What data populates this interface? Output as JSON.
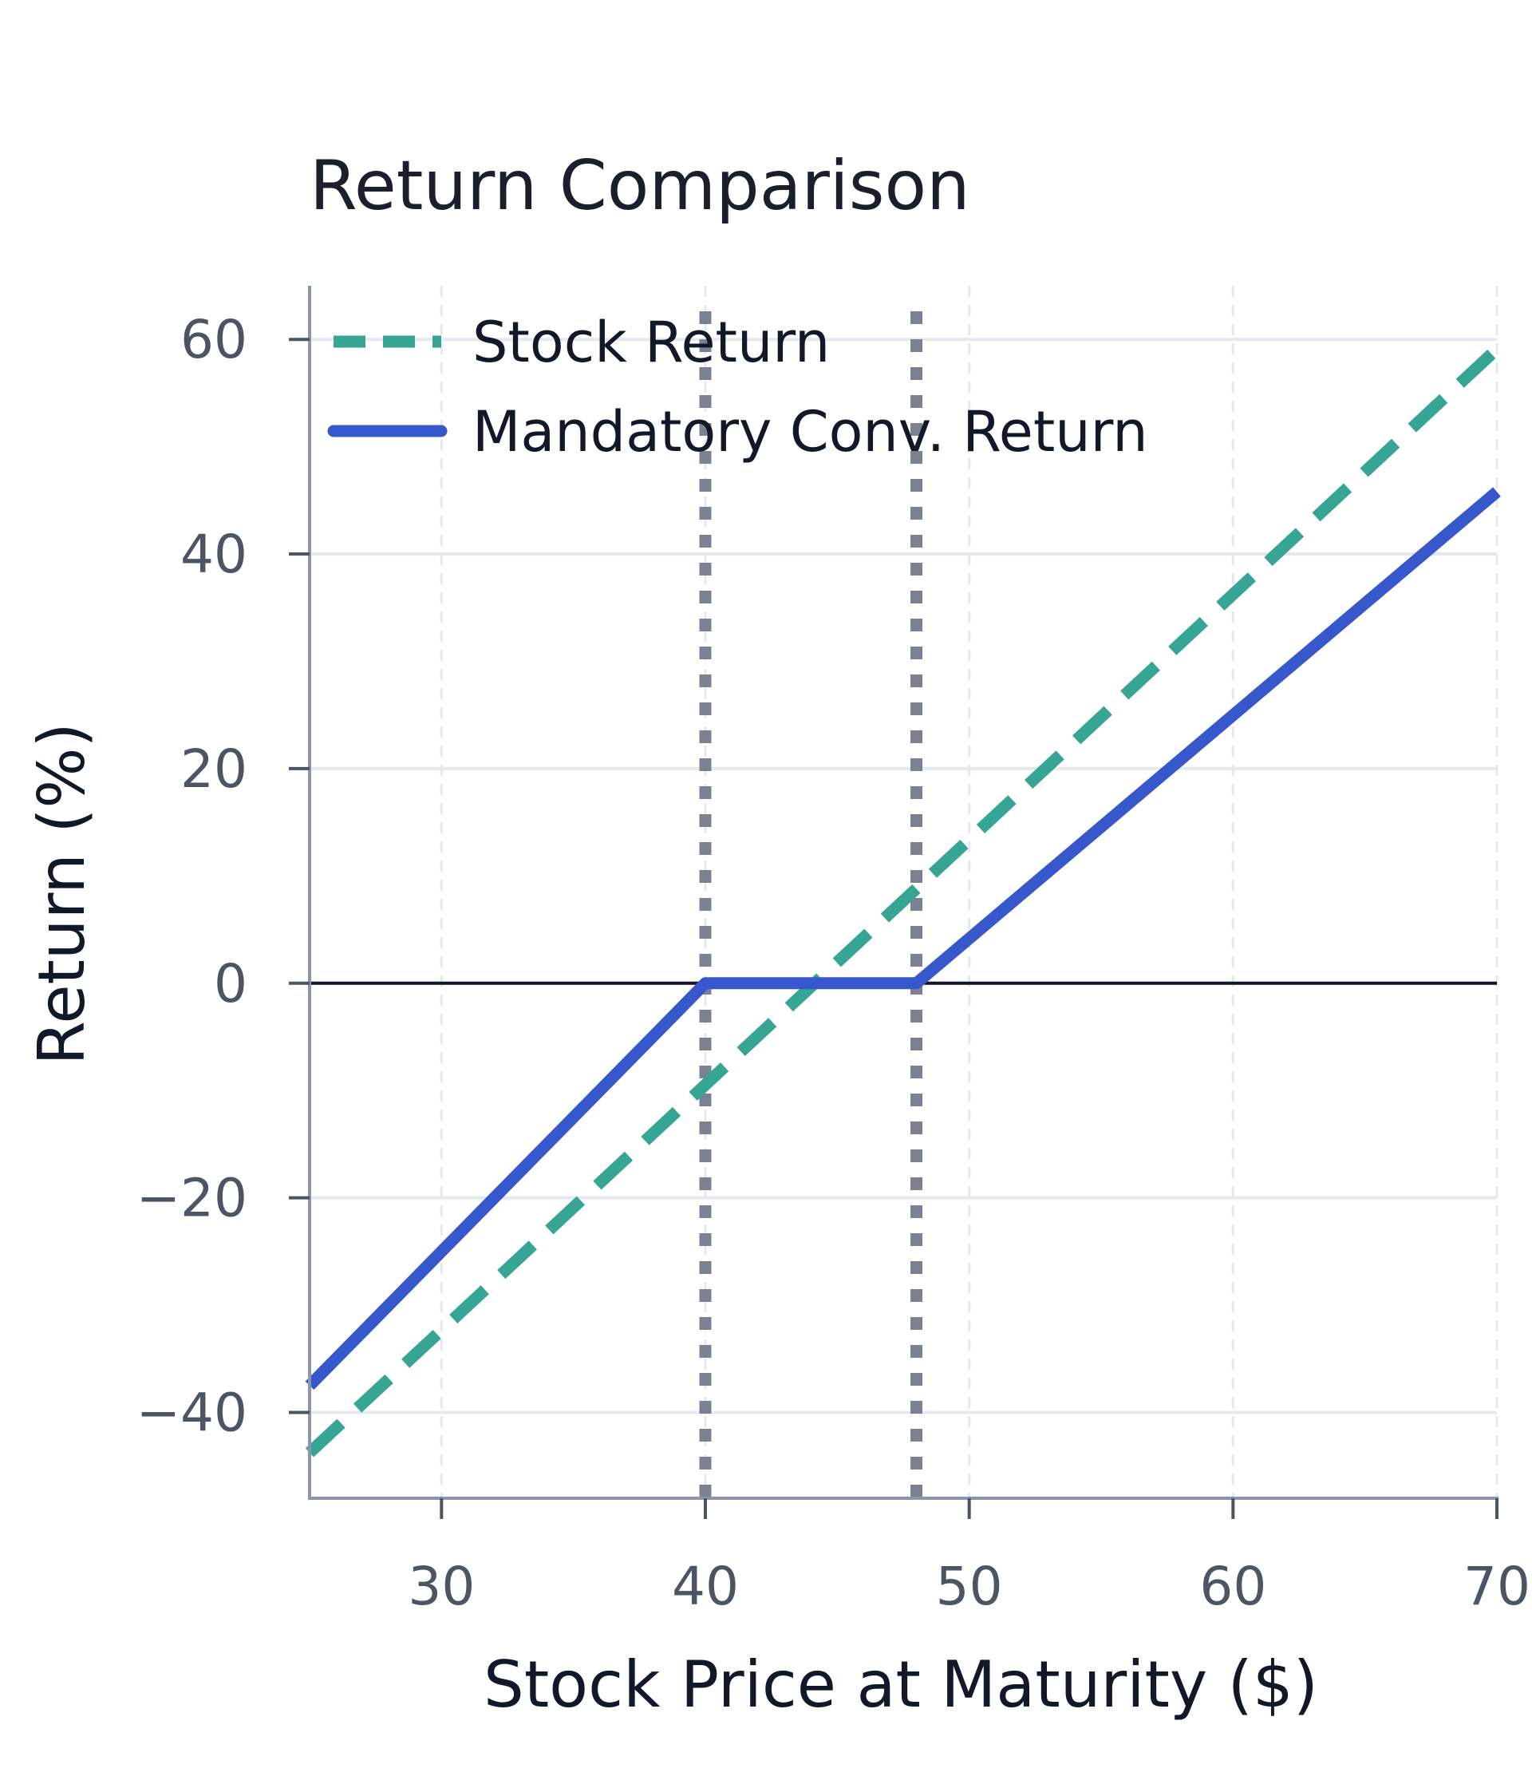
{
  "chart_data": {
    "type": "line",
    "title": "Return Comparison",
    "xlabel": "Stock Price at Maturity ($)",
    "ylabel": "Return (%)",
    "xlim": [
      25,
      70
    ],
    "ylim": [
      -48,
      65
    ],
    "xticks": [
      30,
      40,
      50,
      60,
      70
    ],
    "yticks": [
      -40,
      -20,
      0,
      20,
      40,
      60
    ],
    "grid": true,
    "legend_position": "top-left",
    "reference_lines": {
      "vertical": [
        40,
        48
      ],
      "horizontal": [
        0
      ]
    },
    "series": [
      {
        "name": "Stock Return",
        "style": "dashed",
        "color": "#36a593",
        "points": [
          [
            25,
            -43.75
          ],
          [
            70,
            59.1
          ]
        ]
      },
      {
        "name": "Mandatory Conv. Return",
        "style": "solid",
        "color": "#3758cc",
        "points": [
          [
            25,
            -37.5
          ],
          [
            40,
            0
          ],
          [
            48,
            0
          ],
          [
            70,
            45.8
          ]
        ]
      }
    ]
  }
}
